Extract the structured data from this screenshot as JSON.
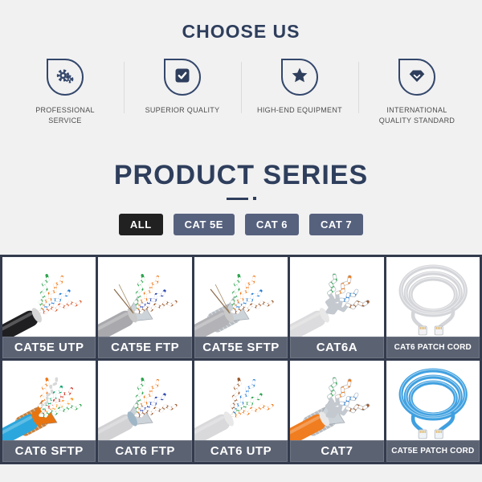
{
  "page": {
    "background": "#f1f1f2",
    "accent_navy": "#2e3e5c"
  },
  "choose_us": {
    "title": "CHOOSE US",
    "features": [
      {
        "icon": "gears-icon",
        "label": "PROFESSIONAL SERVICE"
      },
      {
        "icon": "checkbox-icon",
        "label": "SUPERIOR QUALITY"
      },
      {
        "icon": "star-icon",
        "label": "HIGH-END EQUIPMENT"
      },
      {
        "icon": "gem-icon",
        "label": "INTERNATIONAL QUALITY STANDARD"
      }
    ]
  },
  "product_series": {
    "title": "PRODUCT SERIES",
    "tabs": [
      {
        "label": "ALL",
        "active": true,
        "bg": "#212121"
      },
      {
        "label": "CAT 5E",
        "active": false,
        "bg": "#56617e"
      },
      {
        "label": "CAT 6",
        "active": false,
        "bg": "#56617e"
      },
      {
        "label": "CAT 7",
        "active": false,
        "bg": "#56617e"
      }
    ],
    "products": [
      {
        "label": "CAT5E UTP",
        "art": {
          "kind": "cable",
          "jacket": "#1f1f22",
          "inner": "#d6d6d6",
          "shield": "none",
          "pairs": [
            "#2ea44f",
            "#f07818",
            "#2b7fd4",
            "#d9572b"
          ]
        }
      },
      {
        "label": "CAT5E FTP",
        "art": {
          "kind": "cable",
          "jacket": "#a9a9ad",
          "inner": "#c9c9c9",
          "shield": "foil",
          "drain": true,
          "pairs": [
            "#2ea44f",
            "#f07818",
            "#2742b0",
            "#9a5a2f"
          ]
        }
      },
      {
        "label": "CAT5E SFTP",
        "art": {
          "kind": "cable",
          "jacket": "#b3b3b7",
          "inner": "#c9c9c9",
          "shield": "braid",
          "drain": true,
          "pairs": [
            "#2ea44f",
            "#f07818",
            "#2b7fd4",
            "#9a5a2f"
          ]
        }
      },
      {
        "label": "CAT6A",
        "art": {
          "kind": "cable",
          "jacket": "#dcdcde",
          "inner": "#e8e8e8",
          "shield": "none",
          "foilPairs": true,
          "pairs": [
            "#2ea44f",
            "#f07818",
            "#2b7fd4",
            "#9a5a2f"
          ]
        }
      },
      {
        "label": "CAT6 PATCH CORD",
        "art": {
          "kind": "patch",
          "cable": "#d4d5d9",
          "connector": "#f2f2f4"
        }
      },
      {
        "label": "CAT6 SFTP",
        "art": {
          "kind": "cable",
          "jacket": "#2ba7dd",
          "inner": "#e8740f",
          "shield": "braid-copper",
          "pairs": [
            "#f07818",
            "#ffffff",
            "#19a974",
            "#cc2b1d",
            "#ff9d2e",
            "#2ea44f"
          ]
        }
      },
      {
        "label": "CAT6 FTP",
        "art": {
          "kind": "cable",
          "jacket": "#d2d2d4",
          "inner": "#9fb6c6",
          "shield": "foil",
          "pairs": [
            "#2ea44f",
            "#f07818",
            "#2742b0",
            "#9a5a2f"
          ]
        }
      },
      {
        "label": "CAT6 UTP",
        "art": {
          "kind": "cable",
          "jacket": "#d9d9db",
          "inner": "#e8e8e8",
          "shield": "none",
          "pairs": [
            "#9a5a2f",
            "#2b7fd4",
            "#2ea44f",
            "#f07818"
          ]
        }
      },
      {
        "label": "CAT7",
        "art": {
          "kind": "cable",
          "jacket": "#f07d1f",
          "inner": "#e8e8e8",
          "shield": "braid",
          "foilPairs": true,
          "pairs": [
            "#2ea44f",
            "#f07818",
            "#2b7fd4",
            "#9a5a2f"
          ]
        }
      },
      {
        "label": "CAT5E PATCH CORD",
        "art": {
          "kind": "patch",
          "cable": "#3fa0e0",
          "connector": "#eef3f8"
        }
      }
    ]
  },
  "colors": {
    "grid_border": "#333b4d",
    "label_bar": "#5b6272",
    "tab_active_bg": "#212121",
    "tab_inactive_bg": "#56617e",
    "icon_stroke": "#34476b",
    "feature_text": "#4d4d4d"
  }
}
